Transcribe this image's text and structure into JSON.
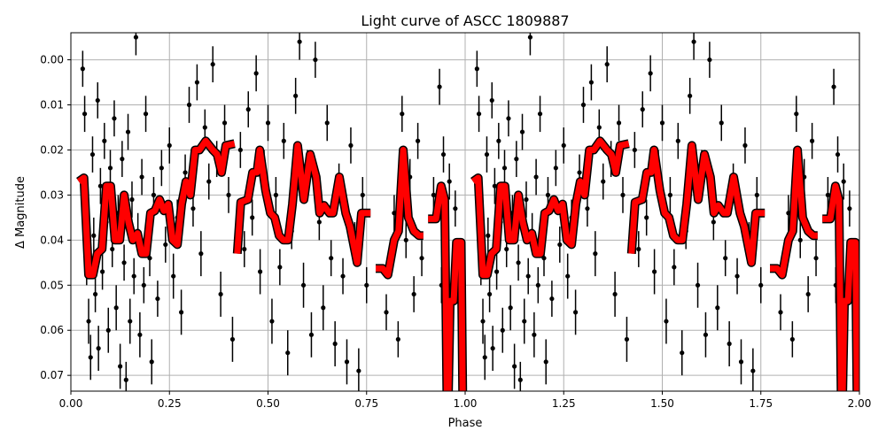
{
  "chart_data": {
    "type": "scatter",
    "title": "Light curve of ASCC 1809887",
    "xlabel": "Phase",
    "ylabel": "Δ Magnitude",
    "xlim": [
      0,
      2
    ],
    "ylim": [
      0.0735,
      -0.006
    ],
    "y_inverted": true,
    "grid": true,
    "xticks": [
      "0.00",
      "0.25",
      "0.50",
      "0.75",
      "1.00",
      "1.25",
      "1.50",
      "1.75",
      "2.00"
    ],
    "yticks": [
      "0.00",
      "0.01",
      "0.02",
      "0.03",
      "0.04",
      "0.05",
      "0.06",
      "0.07"
    ],
    "colors": {
      "points": "#000000",
      "binned": "#ff0000",
      "binned_edge": "#000000",
      "grid": "#b0b0b0"
    },
    "binned_curve": {
      "repeat_period": 1,
      "segments": [
        [
          [
            0.02,
            0.027
          ],
          [
            0.033,
            0.0262
          ],
          [
            0.045,
            0.0477
          ],
          [
            0.056,
            0.0477
          ],
          [
            0.067,
            0.043
          ],
          [
            0.079,
            0.042
          ],
          [
            0.09,
            0.028
          ],
          [
            0.101,
            0.028
          ],
          [
            0.112,
            0.04
          ],
          [
            0.124,
            0.04
          ],
          [
            0.135,
            0.03
          ],
          [
            0.146,
            0.036
          ],
          [
            0.157,
            0.04
          ],
          [
            0.169,
            0.0385
          ],
          [
            0.18,
            0.043
          ],
          [
            0.191,
            0.043
          ],
          [
            0.202,
            0.034
          ],
          [
            0.213,
            0.0335
          ],
          [
            0.225,
            0.031
          ],
          [
            0.236,
            0.0335
          ],
          [
            0.247,
            0.032
          ],
          [
            0.258,
            0.04
          ],
          [
            0.27,
            0.041
          ],
          [
            0.281,
            0.032
          ],
          [
            0.292,
            0.027
          ],
          [
            0.303,
            0.03
          ],
          [
            0.315,
            0.02
          ],
          [
            0.326,
            0.02
          ],
          [
            0.342,
            0.018
          ],
          [
            0.36,
            0.02
          ],
          [
            0.371,
            0.021
          ],
          [
            0.382,
            0.025
          ],
          [
            0.393,
            0.019
          ],
          [
            0.415,
            0.0186
          ]
        ],
        [
          [
            0.422,
            0.043
          ],
          [
            0.431,
            0.0316
          ],
          [
            0.449,
            0.031
          ],
          [
            0.461,
            0.025
          ],
          [
            0.472,
            0.025
          ],
          [
            0.479,
            0.02
          ],
          [
            0.494,
            0.029
          ],
          [
            0.506,
            0.034
          ],
          [
            0.517,
            0.035
          ],
          [
            0.528,
            0.039
          ],
          [
            0.539,
            0.04
          ],
          [
            0.551,
            0.04
          ],
          [
            0.562,
            0.032
          ],
          [
            0.575,
            0.019
          ],
          [
            0.591,
            0.031
          ],
          [
            0.607,
            0.021
          ],
          [
            0.622,
            0.026
          ],
          [
            0.631,
            0.034
          ],
          [
            0.642,
            0.0323
          ],
          [
            0.656,
            0.034
          ],
          [
            0.665,
            0.034
          ],
          [
            0.681,
            0.026
          ],
          [
            0.697,
            0.034
          ],
          [
            0.708,
            0.037
          ],
          [
            0.726,
            0.045
          ],
          [
            0.737,
            0.034
          ],
          [
            0.76,
            0.034
          ]
        ],
        [
          [
            0.773,
            0.0463
          ],
          [
            0.791,
            0.0463
          ],
          [
            0.804,
            0.0477
          ],
          [
            0.82,
            0.04
          ],
          [
            0.831,
            0.038
          ],
          [
            0.843,
            0.02
          ],
          [
            0.856,
            0.035
          ],
          [
            0.87,
            0.038
          ],
          [
            0.883,
            0.039
          ],
          [
            0.894,
            0.039
          ]
        ],
        [
          [
            0.906,
            0.0353
          ],
          [
            0.926,
            0.0353
          ],
          [
            0.939,
            0.028
          ],
          [
            0.948,
            0.031
          ],
          [
            0.955,
            0.085
          ],
          [
            0.962,
            0.0535
          ],
          [
            0.971,
            0.0535
          ],
          [
            0.978,
            0.0405
          ],
          [
            0.99,
            0.0405
          ],
          [
            0.995,
            0.085
          ]
        ]
      ]
    },
    "points": [
      [
        0.03,
        0.002,
        0.004
      ],
      [
        0.035,
        0.012,
        0.004
      ],
      [
        0.037,
        0.031,
        0.004
      ],
      [
        0.04,
        0.045,
        0.005
      ],
      [
        0.045,
        0.058,
        0.005
      ],
      [
        0.05,
        0.066,
        0.005
      ],
      [
        0.055,
        0.021,
        0.004
      ],
      [
        0.058,
        0.039,
        0.004
      ],
      [
        0.062,
        0.052,
        0.004
      ],
      [
        0.068,
        0.009,
        0.004
      ],
      [
        0.07,
        0.064,
        0.005
      ],
      [
        0.075,
        0.028,
        0.004
      ],
      [
        0.08,
        0.047,
        0.004
      ],
      [
        0.085,
        0.018,
        0.004
      ],
      [
        0.09,
        0.036,
        0.004
      ],
      [
        0.095,
        0.06,
        0.005
      ],
      [
        0.1,
        0.024,
        0.004
      ],
      [
        0.105,
        0.042,
        0.004
      ],
      [
        0.11,
        0.013,
        0.004
      ],
      [
        0.115,
        0.055,
        0.005
      ],
      [
        0.12,
        0.034,
        0.004
      ],
      [
        0.125,
        0.068,
        0.005
      ],
      [
        0.13,
        0.022,
        0.004
      ],
      [
        0.135,
        0.045,
        0.004
      ],
      [
        0.14,
        0.071,
        0.004
      ],
      [
        0.145,
        0.016,
        0.004
      ],
      [
        0.15,
        0.058,
        0.005
      ],
      [
        0.155,
        0.031,
        0.004
      ],
      [
        0.16,
        0.048,
        0.004
      ],
      [
        0.165,
        -0.005,
        0.004
      ],
      [
        0.17,
        0.038,
        0.004
      ],
      [
        0.175,
        0.061,
        0.005
      ],
      [
        0.18,
        0.026,
        0.004
      ],
      [
        0.185,
        0.05,
        0.004
      ],
      [
        0.19,
        0.012,
        0.004
      ],
      [
        0.2,
        0.044,
        0.004
      ],
      [
        0.205,
        0.067,
        0.005
      ],
      [
        0.21,
        0.03,
        0.004
      ],
      [
        0.22,
        0.053,
        0.004
      ],
      [
        0.23,
        0.024,
        0.004
      ],
      [
        0.24,
        0.041,
        0.004
      ],
      [
        0.25,
        0.019,
        0.004
      ],
      [
        0.26,
        0.048,
        0.005
      ],
      [
        0.27,
        0.035,
        0.004
      ],
      [
        0.28,
        0.056,
        0.005
      ],
      [
        0.29,
        0.025,
        0.004
      ],
      [
        0.3,
        0.01,
        0.004
      ],
      [
        0.31,
        0.033,
        0.004
      ],
      [
        0.32,
        0.005,
        0.004
      ],
      [
        0.33,
        0.043,
        0.005
      ],
      [
        0.34,
        0.015,
        0.004
      ],
      [
        0.35,
        0.027,
        0.004
      ],
      [
        0.36,
        0.001,
        0.004
      ],
      [
        0.37,
        0.022,
        0.004
      ],
      [
        0.38,
        0.052,
        0.005
      ],
      [
        0.39,
        0.014,
        0.004
      ],
      [
        0.4,
        0.03,
        0.004
      ],
      [
        0.41,
        0.062,
        0.005
      ],
      [
        0.43,
        0.02,
        0.004
      ],
      [
        0.44,
        0.042,
        0.004
      ],
      [
        0.45,
        0.011,
        0.004
      ],
      [
        0.46,
        0.035,
        0.004
      ],
      [
        0.47,
        0.003,
        0.004
      ],
      [
        0.48,
        0.047,
        0.005
      ],
      [
        0.49,
        0.024,
        0.004
      ],
      [
        0.5,
        0.014,
        0.004
      ],
      [
        0.51,
        0.058,
        0.005
      ],
      [
        0.52,
        0.03,
        0.004
      ],
      [
        0.53,
        0.046,
        0.004
      ],
      [
        0.54,
        0.018,
        0.004
      ],
      [
        0.55,
        0.065,
        0.005
      ],
      [
        0.56,
        0.038,
        0.004
      ],
      [
        0.57,
        0.008,
        0.004
      ],
      [
        0.58,
        -0.004,
        0.004
      ],
      [
        0.59,
        0.05,
        0.005
      ],
      [
        0.6,
        0.024,
        0.004
      ],
      [
        0.61,
        0.061,
        0.005
      ],
      [
        0.62,
        0.0,
        0.004
      ],
      [
        0.63,
        0.036,
        0.004
      ],
      [
        0.64,
        0.055,
        0.005
      ],
      [
        0.65,
        0.014,
        0.004
      ],
      [
        0.66,
        0.044,
        0.004
      ],
      [
        0.67,
        0.063,
        0.005
      ],
      [
        0.68,
        0.027,
        0.004
      ],
      [
        0.69,
        0.048,
        0.004
      ],
      [
        0.7,
        0.067,
        0.005
      ],
      [
        0.71,
        0.019,
        0.004
      ],
      [
        0.72,
        0.04,
        0.004
      ],
      [
        0.73,
        0.069,
        0.005
      ],
      [
        0.74,
        0.03,
        0.004
      ],
      [
        0.75,
        0.05,
        0.004
      ],
      [
        0.8,
        0.056,
        0.004
      ],
      [
        0.82,
        0.034,
        0.004
      ],
      [
        0.83,
        0.062,
        0.004
      ],
      [
        0.84,
        0.012,
        0.004
      ],
      [
        0.85,
        0.04,
        0.004
      ],
      [
        0.86,
        0.026,
        0.004
      ],
      [
        0.87,
        0.052,
        0.004
      ],
      [
        0.88,
        0.018,
        0.004
      ],
      [
        0.89,
        0.044,
        0.004
      ],
      [
        0.92,
        0.03,
        0.004
      ],
      [
        0.935,
        0.006,
        0.004
      ],
      [
        0.94,
        0.05,
        0.004
      ],
      [
        0.945,
        0.021,
        0.004
      ],
      [
        0.95,
        0.038,
        0.004
      ],
      [
        0.96,
        0.027,
        0.004
      ],
      [
        0.965,
        0.054,
        0.004
      ],
      [
        0.975,
        0.033,
        0.004
      ],
      [
        0.99,
        0.045,
        0.004
      ]
    ]
  }
}
